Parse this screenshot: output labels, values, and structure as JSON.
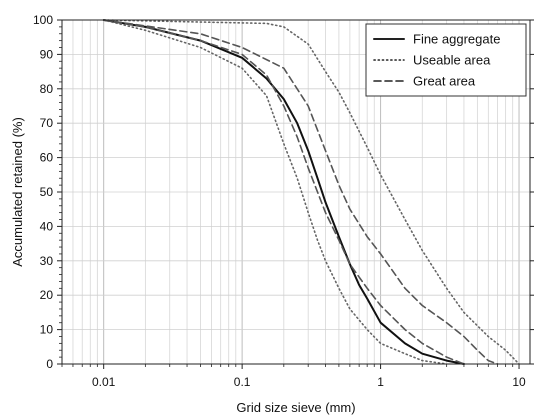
{
  "chart_data": {
    "type": "line",
    "xlabel": "Grid size sieve (mm)",
    "ylabel": "Accumulated retained (%)",
    "xscale": "log",
    "xlim": [
      0.005,
      12
    ],
    "ylim": [
      0,
      100
    ],
    "x_ticks": [
      {
        "value": 0.01,
        "label": "0.01"
      },
      {
        "value": 0.1,
        "label": "0.1"
      },
      {
        "value": 1,
        "label": "1"
      },
      {
        "value": 10,
        "label": "10"
      }
    ],
    "y_ticks": [
      0,
      10,
      20,
      30,
      40,
      50,
      60,
      70,
      80,
      90,
      100
    ],
    "grid": "log-minor vertical, major horizontal",
    "legend": {
      "placement": "top-right"
    },
    "series": [
      {
        "name": "Fine aggregate",
        "style": "solid",
        "color": "#111111",
        "points": [
          [
            0.01,
            100
          ],
          [
            0.02,
            98
          ],
          [
            0.05,
            94
          ],
          [
            0.1,
            89
          ],
          [
            0.15,
            83
          ],
          [
            0.2,
            77
          ],
          [
            0.25,
            70
          ],
          [
            0.3,
            62
          ],
          [
            0.35,
            54
          ],
          [
            0.4,
            47
          ],
          [
            0.5,
            37
          ],
          [
            0.6,
            29
          ],
          [
            0.7,
            23
          ],
          [
            0.8,
            19
          ],
          [
            1,
            12
          ],
          [
            1.5,
            6
          ],
          [
            2,
            3
          ],
          [
            3,
            1
          ],
          [
            4,
            0
          ]
        ]
      },
      {
        "name": "Useable area",
        "style": "dotted",
        "color": "#666666",
        "points": [
          [
            0.01,
            100
          ],
          [
            0.02,
            97
          ],
          [
            0.05,
            92
          ],
          [
            0.1,
            86
          ],
          [
            0.15,
            78
          ],
          [
            0.2,
            64
          ],
          [
            0.25,
            54
          ],
          [
            0.3,
            44
          ],
          [
            0.35,
            36
          ],
          [
            0.4,
            30
          ],
          [
            0.5,
            22
          ],
          [
            0.6,
            16
          ],
          [
            0.8,
            10
          ],
          [
            1,
            6
          ],
          [
            1.5,
            3
          ],
          [
            2,
            1
          ],
          [
            3,
            0
          ]
        ]
      },
      {
        "name": "Useable area upper",
        "style": "dotted",
        "color": "#666666",
        "points": [
          [
            0.01,
            100
          ],
          [
            0.15,
            99
          ],
          [
            0.2,
            98
          ],
          [
            0.3,
            93
          ],
          [
            0.4,
            85
          ],
          [
            0.5,
            79
          ],
          [
            0.6,
            73
          ],
          [
            0.8,
            63
          ],
          [
            1,
            55
          ],
          [
            1.5,
            42
          ],
          [
            2,
            33
          ],
          [
            3,
            22
          ],
          [
            4,
            15
          ],
          [
            6,
            8
          ],
          [
            8,
            4
          ],
          [
            10,
            0
          ]
        ]
      },
      {
        "name": "Great area",
        "style": "dashed",
        "color": "#555555",
        "points": [
          [
            0.01,
            100
          ],
          [
            0.05,
            96
          ],
          [
            0.1,
            92
          ],
          [
            0.2,
            86
          ],
          [
            0.3,
            75
          ],
          [
            0.4,
            62
          ],
          [
            0.5,
            52
          ],
          [
            0.6,
            45
          ],
          [
            0.8,
            37
          ],
          [
            1,
            32
          ],
          [
            1.5,
            22
          ],
          [
            2,
            17
          ],
          [
            3,
            12
          ],
          [
            4,
            8
          ],
          [
            5,
            4
          ],
          [
            6,
            1
          ],
          [
            7,
            0
          ]
        ]
      },
      {
        "name": "Great area lower",
        "style": "dashed",
        "color": "#555555",
        "points": [
          [
            0.01,
            100
          ],
          [
            0.02,
            98
          ],
          [
            0.05,
            94
          ],
          [
            0.1,
            90
          ],
          [
            0.15,
            84
          ],
          [
            0.2,
            75
          ],
          [
            0.25,
            66
          ],
          [
            0.3,
            57
          ],
          [
            0.35,
            50
          ],
          [
            0.4,
            44
          ],
          [
            0.5,
            36
          ],
          [
            0.6,
            29
          ],
          [
            0.8,
            22
          ],
          [
            1,
            17
          ],
          [
            1.5,
            10
          ],
          [
            2,
            6
          ],
          [
            3,
            2
          ],
          [
            4,
            0
          ]
        ]
      }
    ],
    "legend_entries": [
      {
        "label": "Fine aggregate",
        "style": "solid"
      },
      {
        "label": "Useable area",
        "style": "dotted"
      },
      {
        "label": "Great area",
        "style": "dashed"
      }
    ]
  }
}
